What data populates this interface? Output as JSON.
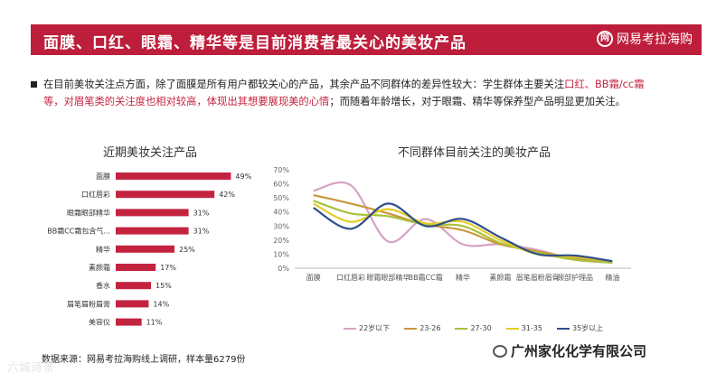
{
  "banner": {
    "title": "面膜、口红、眼霜、精华等是目前消费者最关心的美妆产品",
    "brand": "网易考拉海购",
    "brand_logo": "网"
  },
  "paragraph": {
    "part1": "在目前美妆关注点方面，除了面膜是所有用户都较关心的产品，其余产品不同群体的差异性较大：学生群体主要关注",
    "part2_highlight": "口红、BB霜/cc霜等，对眉笔类的关注度也相对较高，体现出其想要展现美的心情",
    "part3": "；而随着年龄增长，对于眼霜、精华等保养型产品明显更加关注。"
  },
  "colors": {
    "brand": "#bd1e3b",
    "bar": "#c4233f",
    "highlight": "#c4233f"
  },
  "source": "数据来源：网易考拉海购线上调研，样本量6279份",
  "company": "广州家化化学有限公司",
  "watermark": "六城诗景",
  "chart_data": [
    {
      "type": "bar",
      "orientation": "horizontal",
      "title": "近期美妆关注产品",
      "categories": [
        "面膜",
        "口红唇彩",
        "眼霜眼部精华",
        "BB霜CC霜包含气...",
        "精华",
        "素颜霜",
        "香水",
        "眉笔眉粉眉膏",
        "美容仪"
      ],
      "values": [
        49,
        42,
        31,
        31,
        25,
        17,
        15,
        14,
        11
      ],
      "value_labels": [
        "49%",
        "42%",
        "31%",
        "31%",
        "25%",
        "17%",
        "15%",
        "14%",
        "11%"
      ],
      "xlim": [
        0,
        60
      ]
    },
    {
      "type": "line",
      "title": "不同群体目前关注的美妆产品",
      "categories": [
        "面膜",
        "口红唇彩",
        "眼霜眼部精华",
        "BB霜CC霜",
        "精华",
        "素颜霜",
        "眉笔眉粉眉膏",
        "颈部护理品",
        "精油"
      ],
      "ylim": [
        0,
        70
      ],
      "yticks": [
        "0%",
        "10%",
        "20%",
        "30%",
        "40%",
        "50%",
        "60%",
        "70%"
      ],
      "series": [
        {
          "name": "22岁以下",
          "color": "#d6a3c4",
          "values": [
            55,
            59,
            19,
            35,
            17,
            17,
            13,
            6,
            4
          ]
        },
        {
          "name": "23-26",
          "color": "#c9973e",
          "values": [
            52,
            46,
            39,
            31,
            27,
            17,
            12,
            7,
            4
          ]
        },
        {
          "name": "27-30",
          "color": "#a8c23a",
          "values": [
            48,
            39,
            37,
            31,
            30,
            18,
            11,
            6,
            4
          ]
        },
        {
          "name": "31-35",
          "color": "#e6cc28",
          "values": [
            46,
            33,
            42,
            32,
            33,
            20,
            10,
            8,
            5
          ]
        },
        {
          "name": "35岁以上",
          "color": "#2f4f8a",
          "values": [
            43,
            28,
            46,
            30,
            35,
            22,
            10,
            9,
            5
          ]
        }
      ]
    }
  ]
}
